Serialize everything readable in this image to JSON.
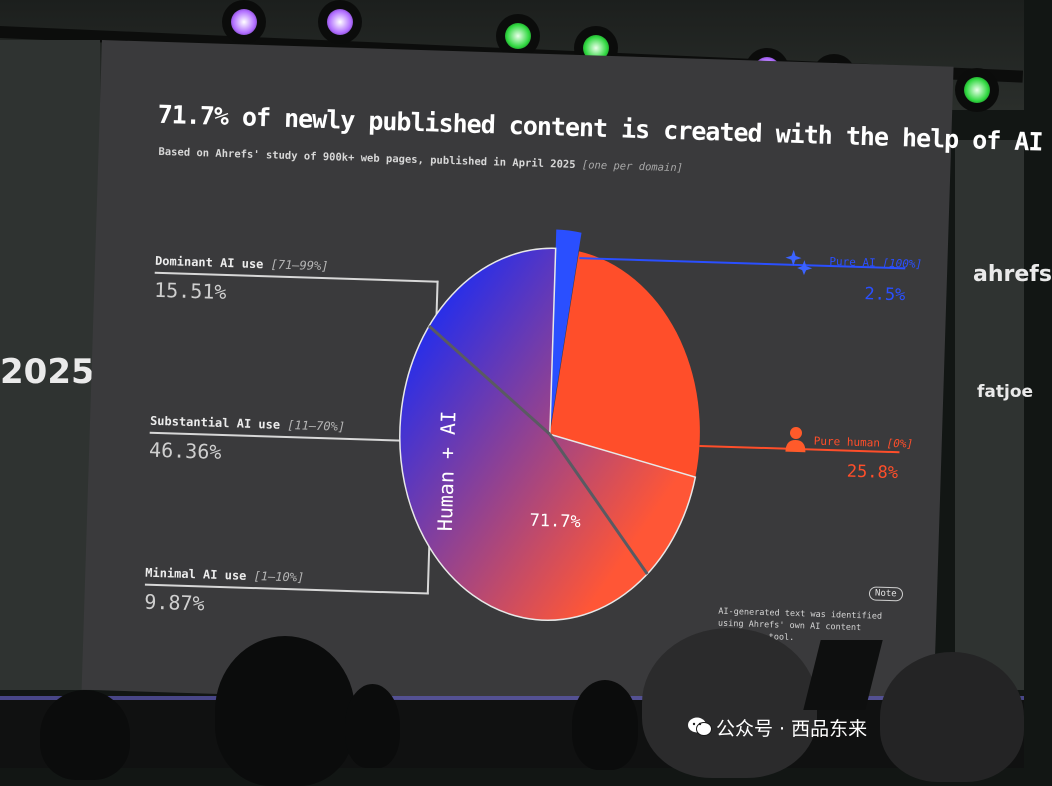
{
  "colors": {
    "pure_ai": "#2a4fff",
    "pure_human": "#ff4e2a",
    "human_ai_start": "#1d2cf2",
    "human_ai_end": "#ff5636",
    "slide_bg": "#3a3a3c"
  },
  "side": {
    "left_year": "2025",
    "right_logo": "ahrefs",
    "right_sponsor": "fatjoe"
  },
  "slide": {
    "headline": "71.7% of newly published content is created with the help of AI",
    "subtitle": "Based on Ahrefs' study of 900k+ web pages, published in April 2025",
    "subtitle_note": "[one per domain]",
    "note_badge": "Note",
    "footnote": "AI-generated text was identified using Ahrefs' own AI content detection tool."
  },
  "chart_data": {
    "type": "pie",
    "title": "71.7% of newly published content is created with the help of AI",
    "subtitle": "Based on Ahrefs' study of 900k+ web pages, published in April 2025 [one per domain]",
    "slices": [
      {
        "name": "Pure AI",
        "range": "[100%]",
        "value": 2.5,
        "value_label": "2.5%",
        "color": "#2a4fff"
      },
      {
        "name": "Pure human",
        "range": "[0%]",
        "value": 25.8,
        "value_label": "25.8%",
        "color": "#ff4e2a"
      },
      {
        "name": "Human + AI",
        "value": 71.7,
        "value_label": "71.7%",
        "breakdown": [
          {
            "name": "Dominant AI use",
            "range": "[71–99%]",
            "value": 15.51,
            "value_label": "15.51%"
          },
          {
            "name": "Substantial AI use",
            "range": "[11–70%]",
            "value": 46.36,
            "value_label": "46.36%"
          },
          {
            "name": "Minimal AI use",
            "range": "[1–10%]",
            "value": 9.87,
            "value_label": "9.87%"
          }
        ]
      }
    ],
    "group_label": "Human + AI",
    "group_value_label": "71.7%"
  },
  "watermark": {
    "text": "公众号 · 西品东来"
  }
}
